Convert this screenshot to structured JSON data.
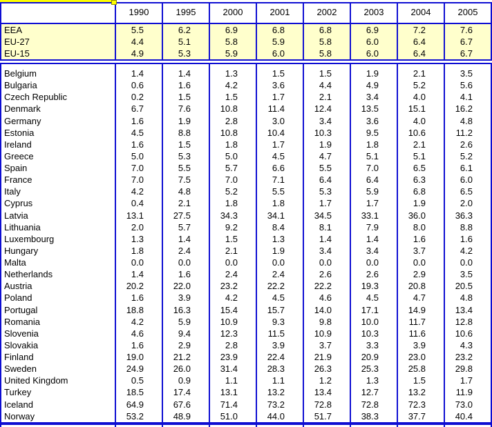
{
  "colors": {
    "border_blue": "#0d0dd2",
    "aggregate_row_fill": "#ffffcc",
    "selection_yellow": "#ffff00"
  },
  "table": {
    "corner_label": "",
    "columns": [
      "1990",
      "1995",
      "2000",
      "2001",
      "2002",
      "2003",
      "2004",
      "2005"
    ],
    "aggregate_rows": [
      {
        "label": "EEA",
        "values": [
          "5.5",
          "6.2",
          "6.9",
          "6.8",
          "6.8",
          "6.9",
          "7.2",
          "7.6"
        ]
      },
      {
        "label": "EU-27",
        "values": [
          "4.4",
          "5.1",
          "5.8",
          "5.9",
          "5.8",
          "6.0",
          "6.4",
          "6.7"
        ]
      },
      {
        "label": "EU-15",
        "values": [
          "4.9",
          "5.3",
          "5.9",
          "6.0",
          "5.8",
          "6.0",
          "6.4",
          "6.7"
        ]
      }
    ],
    "country_rows": [
      {
        "label": "Belgium",
        "values": [
          "1.4",
          "1.4",
          "1.3",
          "1.5",
          "1.5",
          "1.9",
          "2.1",
          "3.5"
        ]
      },
      {
        "label": "Bulgaria",
        "values": [
          "0.6",
          "1.6",
          "4.2",
          "3.6",
          "4.4",
          "4.9",
          "5.2",
          "5.6"
        ]
      },
      {
        "label": "Czech Republic",
        "values": [
          "0.2",
          "1.5",
          "1.5",
          "1.7",
          "2.1",
          "3.4",
          "4.0",
          "4.1"
        ]
      },
      {
        "label": "Denmark",
        "values": [
          "6.7",
          "7.6",
          "10.8",
          "11.4",
          "12.4",
          "13.5",
          "15.1",
          "16.2"
        ]
      },
      {
        "label": "Germany",
        "values": [
          "1.6",
          "1.9",
          "2.8",
          "3.0",
          "3.4",
          "3.6",
          "4.0",
          "4.8"
        ]
      },
      {
        "label": "Estonia",
        "values": [
          "4.5",
          "8.8",
          "10.8",
          "10.4",
          "10.3",
          "9.5",
          "10.6",
          "11.2"
        ]
      },
      {
        "label": "Ireland",
        "values": [
          "1.6",
          "1.5",
          "1.8",
          "1.7",
          "1.9",
          "1.8",
          "2.1",
          "2.6"
        ]
      },
      {
        "label": "Greece",
        "values": [
          "5.0",
          "5.3",
          "5.0",
          "4.5",
          "4.7",
          "5.1",
          "5.1",
          "5.2"
        ]
      },
      {
        "label": "Spain",
        "values": [
          "7.0",
          "5.5",
          "5.7",
          "6.6",
          "5.5",
          "7.0",
          "6.5",
          "6.1"
        ]
      },
      {
        "label": "France",
        "values": [
          "7.0",
          "7.5",
          "7.0",
          "7.1",
          "6.4",
          "6.4",
          "6.3",
          "6.0"
        ]
      },
      {
        "label": "Italy",
        "values": [
          "4.2",
          "4.8",
          "5.2",
          "5.5",
          "5.3",
          "5.9",
          "6.8",
          "6.5"
        ]
      },
      {
        "label": "Cyprus",
        "values": [
          "0.4",
          "2.1",
          "1.8",
          "1.8",
          "1.7",
          "1.7",
          "1.9",
          "2.0"
        ]
      },
      {
        "label": "Latvia",
        "values": [
          "13.1",
          "27.5",
          "34.3",
          "34.1",
          "34.5",
          "33.1",
          "36.0",
          "36.3"
        ]
      },
      {
        "label": "Lithuania",
        "values": [
          "2.0",
          "5.7",
          "9.2",
          "8.4",
          "8.1",
          "7.9",
          "8.0",
          "8.8"
        ]
      },
      {
        "label": "Luxembourg",
        "values": [
          "1.3",
          "1.4",
          "1.5",
          "1.3",
          "1.4",
          "1.4",
          "1.6",
          "1.6"
        ]
      },
      {
        "label": "Hungary",
        "values": [
          "1.8",
          "2.4",
          "2.1",
          "1.9",
          "3.4",
          "3.4",
          "3.7",
          "4.2"
        ]
      },
      {
        "label": "Malta",
        "values": [
          "0.0",
          "0.0",
          "0.0",
          "0.0",
          "0.0",
          "0.0",
          "0.0",
          "0.0"
        ]
      },
      {
        "label": "Netherlands",
        "values": [
          "1.4",
          "1.6",
          "2.4",
          "2.4",
          "2.6",
          "2.6",
          "2.9",
          "3.5"
        ]
      },
      {
        "label": "Austria",
        "values": [
          "20.2",
          "22.0",
          "23.2",
          "22.2",
          "22.2",
          "19.3",
          "20.8",
          "20.5"
        ]
      },
      {
        "label": "Poland",
        "values": [
          "1.6",
          "3.9",
          "4.2",
          "4.5",
          "4.6",
          "4.5",
          "4.7",
          "4.8"
        ]
      },
      {
        "label": "Portugal",
        "values": [
          "18.8",
          "16.3",
          "15.4",
          "15.7",
          "14.0",
          "17.1",
          "14.9",
          "13.4"
        ]
      },
      {
        "label": "Romania",
        "values": [
          "4.2",
          "5.9",
          "10.9",
          "9.3",
          "9.8",
          "10.0",
          "11.7",
          "12.8"
        ]
      },
      {
        "label": "Slovenia",
        "values": [
          "4.6",
          "9.4",
          "12.3",
          "11.5",
          "10.9",
          "10.3",
          "11.6",
          "10.6"
        ]
      },
      {
        "label": "Slovakia",
        "values": [
          "1.6",
          "2.9",
          "2.8",
          "3.9",
          "3.7",
          "3.3",
          "3.9",
          "4.3"
        ]
      },
      {
        "label": "Finland",
        "values": [
          "19.0",
          "21.2",
          "23.9",
          "22.4",
          "21.9",
          "20.9",
          "23.0",
          "23.2"
        ]
      },
      {
        "label": "Sweden",
        "values": [
          "24.9",
          "26.0",
          "31.4",
          "28.3",
          "26.3",
          "25.3",
          "25.8",
          "29.8"
        ]
      },
      {
        "label": "United Kingdom",
        "values": [
          "0.5",
          "0.9",
          "1.1",
          "1.1",
          "1.2",
          "1.3",
          "1.5",
          "1.7"
        ]
      },
      {
        "label": "Turkey",
        "values": [
          "18.5",
          "17.4",
          "13.1",
          "13.2",
          "13.4",
          "12.7",
          "13.2",
          "11.9"
        ]
      },
      {
        "label": "Iceland",
        "values": [
          "64.9",
          "67.6",
          "71.4",
          "73.2",
          "72.8",
          "72.8",
          "72.3",
          "73.0"
        ]
      },
      {
        "label": "Norway",
        "values": [
          "53.2",
          "48.9",
          "51.0",
          "44.0",
          "51.7",
          "38.3",
          "37.7",
          "40.4"
        ]
      }
    ]
  }
}
